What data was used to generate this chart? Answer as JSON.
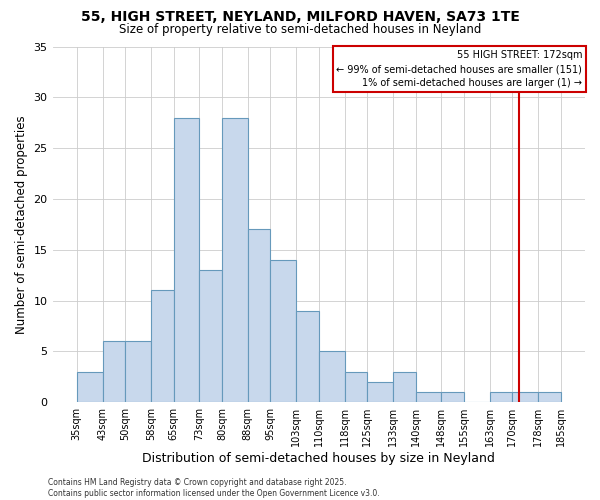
{
  "title": "55, HIGH STREET, NEYLAND, MILFORD HAVEN, SA73 1TE",
  "subtitle": "Size of property relative to semi-detached houses in Neyland",
  "xlabel": "Distribution of semi-detached houses by size in Neyland",
  "ylabel": "Number of semi-detached properties",
  "bar_edges": [
    35,
    43,
    50,
    58,
    65,
    73,
    80,
    88,
    95,
    103,
    110,
    118,
    125,
    133,
    140,
    148,
    155,
    163,
    170,
    178,
    185
  ],
  "bar_heights": [
    3,
    6,
    6,
    11,
    28,
    13,
    28,
    17,
    14,
    9,
    5,
    3,
    2,
    3,
    1,
    1,
    0,
    1,
    1,
    1
  ],
  "bar_color": "#c8d8ec",
  "bar_edgecolor": "#6699bb",
  "ylim": [
    0,
    35
  ],
  "yticks": [
    0,
    5,
    10,
    15,
    20,
    25,
    30,
    35
  ],
  "tick_labels": [
    "35sqm",
    "43sqm",
    "50sqm",
    "58sqm",
    "65sqm",
    "73sqm",
    "80sqm",
    "88sqm",
    "95sqm",
    "103sqm",
    "110sqm",
    "118sqm",
    "125sqm",
    "133sqm",
    "140sqm",
    "148sqm",
    "155sqm",
    "163sqm",
    "170sqm",
    "178sqm",
    "185sqm"
  ],
  "vline_x": 172,
  "vline_color": "#cc0000",
  "annotation_title": "55 HIGH STREET: 172sqm",
  "annotation_line1": "← 99% of semi-detached houses are smaller (151)",
  "annotation_line2": "1% of semi-detached houses are larger (1) →",
  "footer1": "Contains HM Land Registry data © Crown copyright and database right 2025.",
  "footer2": "Contains public sector information licensed under the Open Government Licence v3.0.",
  "background_color": "#ffffff",
  "grid_color": "#cccccc"
}
